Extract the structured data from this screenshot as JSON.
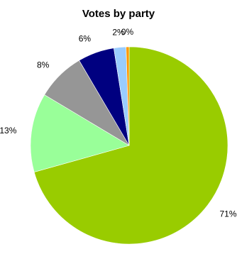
{
  "chart_data": {
    "type": "pie",
    "title": "Votes by party",
    "slices": [
      {
        "label": "71%",
        "value": 71,
        "color": "#99cc00"
      },
      {
        "label": "13%",
        "value": 13,
        "color": "#99ff99"
      },
      {
        "label": "8%",
        "value": 8,
        "color": "#969696"
      },
      {
        "label": "6%",
        "value": 6,
        "color": "#000080"
      },
      {
        "label": "2%",
        "value": 2,
        "color": "#99ccff"
      },
      {
        "label": "0%",
        "value": 0.5,
        "color": "#ff9900"
      }
    ],
    "start_angle": "12 o'clock",
    "direction": "clockwise",
    "legend": "none"
  }
}
